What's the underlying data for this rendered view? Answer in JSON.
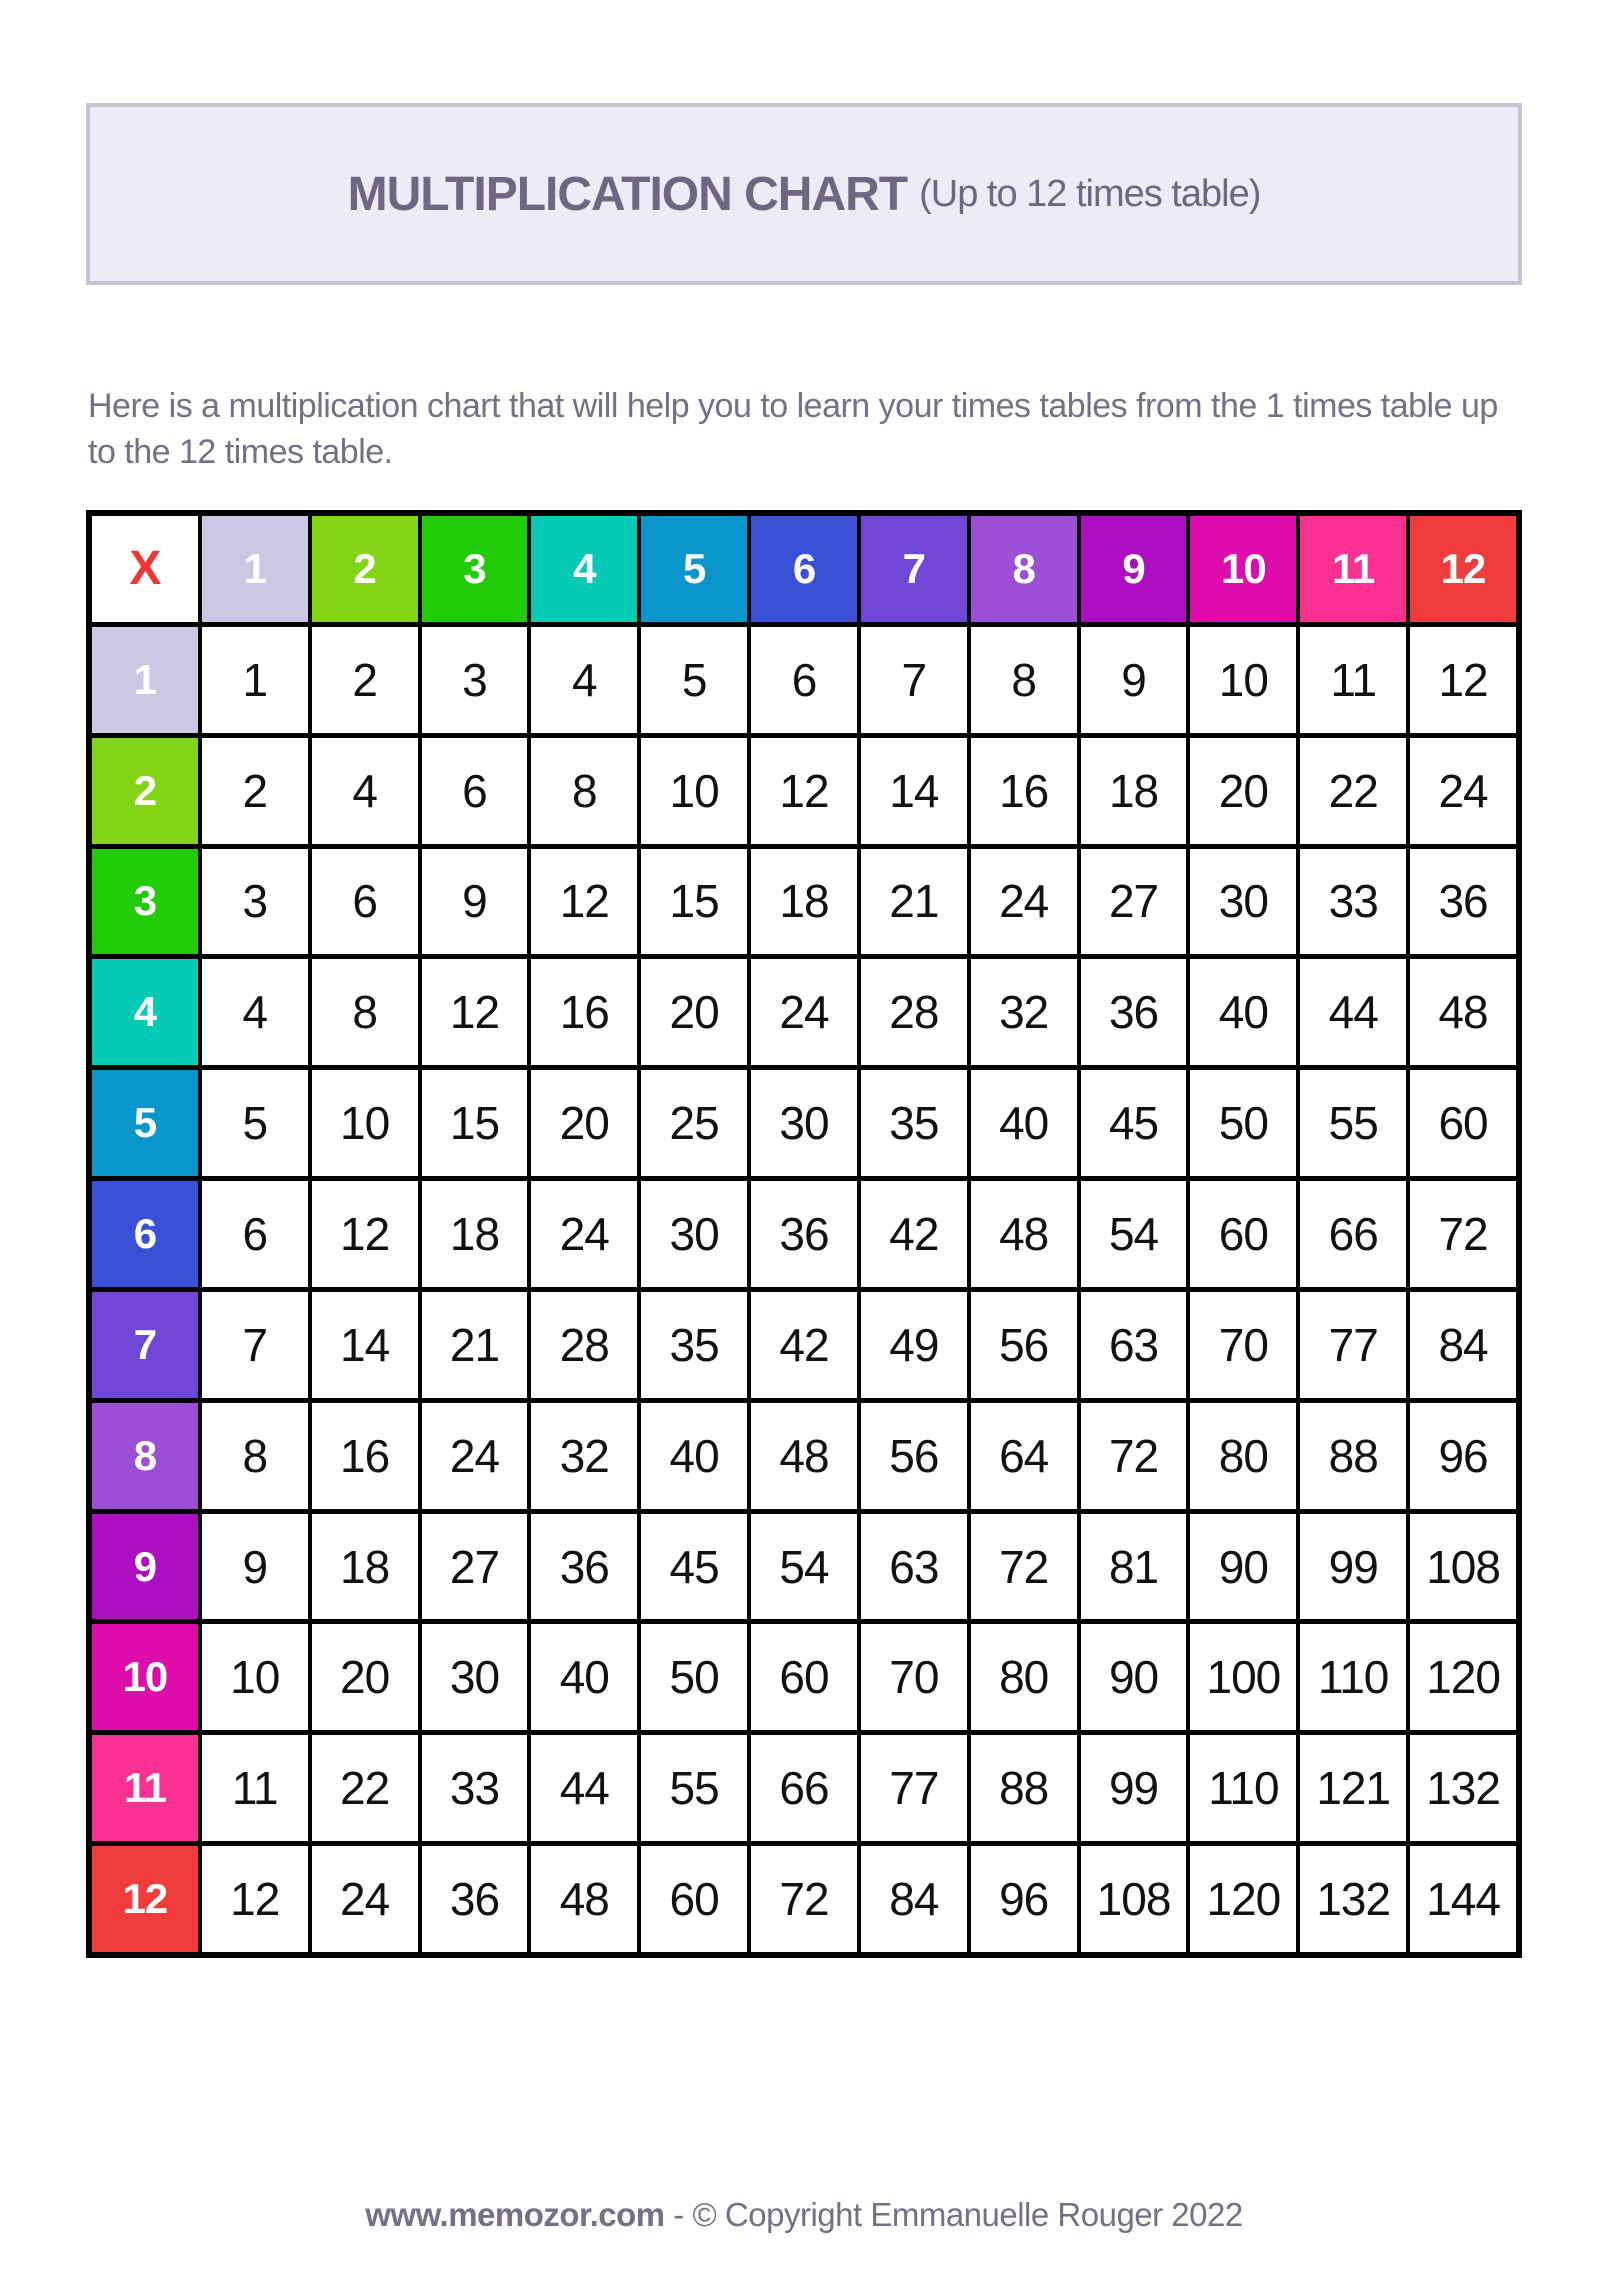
{
  "banner": {
    "title": "MULTIPLICATION CHART",
    "subtitle": "(Up to 12 times table)",
    "background": "#edecf6",
    "border_color": "#c6c3d4",
    "text_color": "#6f6782"
  },
  "description": {
    "text": "Here is a multiplication chart that will help you to learn your times tables from the 1 times table up to the 12 times table."
  },
  "table": {
    "corner_label": "X",
    "corner_text_color": "#f23636",
    "corner_background": "#ffffff",
    "grid_line_color": "#000000",
    "body_background": "#ffffff",
    "body_text_color": "#111111",
    "header_text_color": "#ffffff",
    "header_values": [
      "1",
      "2",
      "3",
      "4",
      "5",
      "6",
      "7",
      "8",
      "9",
      "10",
      "11",
      "12"
    ],
    "header_colors": [
      "#cbc6e2",
      "#82d414",
      "#22cb07",
      "#06cbb4",
      "#0997cb",
      "#3a50d6",
      "#7046d6",
      "#9a4fd6",
      "#ad0ec0",
      "#dd0caa",
      "#fb3090",
      "#f23b3b"
    ],
    "rows": [
      {
        "header": "1",
        "values": [
          1,
          2,
          3,
          4,
          5,
          6,
          7,
          8,
          9,
          10,
          11,
          12
        ]
      },
      {
        "header": "2",
        "values": [
          2,
          4,
          6,
          8,
          10,
          12,
          14,
          16,
          18,
          20,
          22,
          24
        ]
      },
      {
        "header": "3",
        "values": [
          3,
          6,
          9,
          12,
          15,
          18,
          21,
          24,
          27,
          30,
          33,
          36
        ]
      },
      {
        "header": "4",
        "values": [
          4,
          8,
          12,
          16,
          20,
          24,
          28,
          32,
          36,
          40,
          44,
          48
        ]
      },
      {
        "header": "5",
        "values": [
          5,
          10,
          15,
          20,
          25,
          30,
          35,
          40,
          45,
          50,
          55,
          60
        ]
      },
      {
        "header": "6",
        "values": [
          6,
          12,
          18,
          24,
          30,
          36,
          42,
          48,
          54,
          60,
          66,
          72
        ]
      },
      {
        "header": "7",
        "values": [
          7,
          14,
          21,
          28,
          35,
          42,
          49,
          56,
          63,
          70,
          77,
          84
        ]
      },
      {
        "header": "8",
        "values": [
          8,
          16,
          24,
          32,
          40,
          48,
          56,
          64,
          72,
          80,
          88,
          96
        ]
      },
      {
        "header": "9",
        "values": [
          9,
          18,
          27,
          36,
          45,
          54,
          63,
          72,
          81,
          90,
          99,
          108
        ]
      },
      {
        "header": "10",
        "values": [
          10,
          20,
          30,
          40,
          50,
          60,
          70,
          80,
          90,
          100,
          110,
          120
        ]
      },
      {
        "header": "11",
        "values": [
          11,
          22,
          33,
          44,
          55,
          66,
          77,
          88,
          99,
          110,
          121,
          132
        ]
      },
      {
        "header": "12",
        "values": [
          12,
          24,
          36,
          48,
          60,
          72,
          84,
          96,
          108,
          120,
          132,
          144
        ]
      }
    ]
  },
  "footer": {
    "site": "www.memozor.com",
    "rest": "- © Copyright Emmanuelle Rouger 2022"
  }
}
